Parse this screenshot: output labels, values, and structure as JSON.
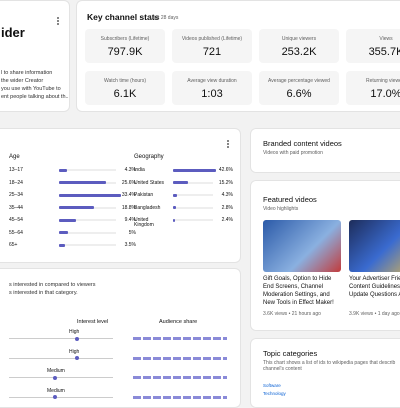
{
  "intro_card": {
    "title": "ider",
    "lines": [
      "l to share information",
      "the wider Creator",
      "you use with YouTube to",
      "ent people talking about th..."
    ]
  },
  "key_stats": {
    "title": "Key channel stats",
    "subtitle": "Last 28 days",
    "stats": [
      {
        "label": "Subscribers (Lifetime)",
        "value": "797.9K"
      },
      {
        "label": "Videos published (Lifetime)",
        "value": "721"
      },
      {
        "label": "Unique viewers",
        "value": "253.2K"
      },
      {
        "label": "Views",
        "value": "355.7K"
      },
      {
        "label": "Watch time (hours)",
        "value": "6.1K"
      },
      {
        "label": "Average view duration",
        "value": "1:03"
      },
      {
        "label": "Average percentage viewed",
        "value": "6.6%"
      },
      {
        "label": "Returning viewers",
        "value": "17.0%"
      }
    ]
  },
  "demographics": {
    "age": {
      "title": "Age",
      "rows": [
        {
          "label": "13–17",
          "value": 4.3,
          "value_label": "4.3%"
        },
        {
          "label": "18–24",
          "value": 25.6,
          "value_label": "25.6%"
        },
        {
          "label": "25–34",
          "value": 33.4,
          "value_label": "33.4%"
        },
        {
          "label": "35–44",
          "value": 18.8,
          "value_label": "18.8%"
        },
        {
          "label": "45–54",
          "value": 9.4,
          "value_label": "9.4%"
        },
        {
          "label": "55–64",
          "value": 5,
          "value_label": "5%"
        },
        {
          "label": "65+",
          "value": 3.5,
          "value_label": "3.5%"
        }
      ]
    },
    "geography": {
      "title": "Geography",
      "rows": [
        {
          "label": "India",
          "value": 42.6,
          "value_label": "42.6%"
        },
        {
          "label": "United States",
          "value": 15.2,
          "value_label": "15.2%"
        },
        {
          "label": "Pakistan",
          "value": 4.3,
          "value_label": "4.3%"
        },
        {
          "label": "Bangladesh",
          "value": 2.8,
          "value_label": "2.8%"
        },
        {
          "label": "United Kingdom",
          "value": 2.4,
          "value_label": "2.4%"
        }
      ]
    }
  },
  "interests": {
    "lines": [
      "s interested in compared to viewers",
      "s interested in that category."
    ],
    "columns": [
      "Interest level",
      "Audience share"
    ],
    "levels": [
      "High",
      "High",
      "Medium",
      "Medium"
    ]
  },
  "branded": {
    "title": "Branded content videos",
    "subtitle": "Videos with paid promotion"
  },
  "featured": {
    "title": "Featured videos",
    "subtitle": "Video highlights",
    "videos": [
      {
        "title": "Gift Goals, Option to Hide End Screens, Channel Moderation Settings, and New Tools in Effect Maker!",
        "meta": "3.6K views • 21 hours ago"
      },
      {
        "title": "Your Advertiser Friend Content Guidelines Pr Update Questions An...",
        "meta": "3.9K views • 1 day ago"
      }
    ]
  },
  "topics": {
    "title": "Topic categories",
    "description": "This chart shows a list of ids to wikipedia pages that describ channel's content",
    "items": [
      "Software",
      "Technology"
    ]
  }
}
